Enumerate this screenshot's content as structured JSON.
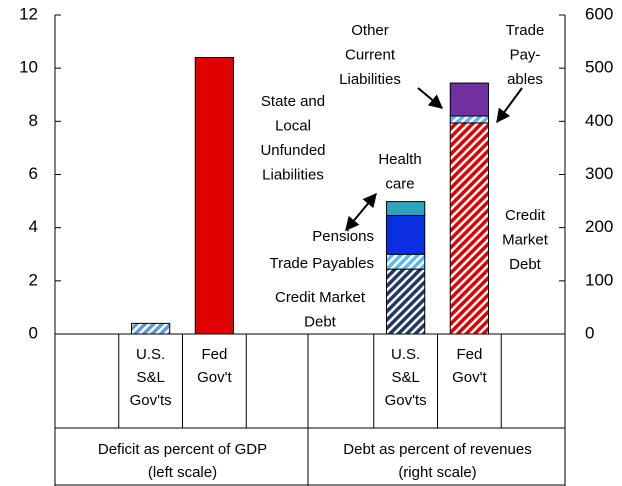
{
  "chart_data": {
    "type": "stacked-bar",
    "categories": [
      null,
      "U.S. S&L Gov'ts",
      "Fed Gov't",
      null,
      null,
      "U.S. S&L Gov'ts",
      "Fed Gov't",
      null
    ],
    "groups": [
      [
        "Deficit as percent of GDP",
        "(left scale)"
      ],
      [
        "Debt as percent of revenues",
        "(right scale)"
      ]
    ],
    "ylim": [
      0,
      12
    ],
    "yticks": [
      0,
      2,
      4,
      6,
      8,
      10,
      12
    ],
    "y2lim": [
      0,
      600
    ],
    "y2ticks": [
      0,
      100,
      200,
      300,
      400,
      500,
      600
    ],
    "series": [
      {
        "values": [
          null,
          0.4,
          10.4,
          null,
          null,
          null,
          null,
          null
        ],
        "colors": [
          null,
          "#5b9bd5",
          "#e00000",
          null,
          null,
          null,
          null,
          null
        ],
        "hatched": [
          null,
          true,
          false,
          null,
          null,
          null,
          null,
          null
        ]
      },
      {
        "axis": "y2",
        "values": [
          null,
          null,
          null,
          null,
          null,
          122,
          397,
          null
        ],
        "colors": [
          null,
          null,
          null,
          null,
          null,
          "#1f3864",
          "#e00000",
          null
        ],
        "hatched": [
          null,
          null,
          null,
          null,
          null,
          true,
          true,
          null
        ]
      },
      {
        "axis": "y2",
        "values": [
          null,
          null,
          null,
          null,
          null,
          28,
          13,
          null
        ],
        "colors": [
          null,
          null,
          null,
          null,
          null,
          "#5bb8f0",
          "#5bb8f0",
          null
        ],
        "hatched": [
          null,
          null,
          null,
          null,
          null,
          true,
          true,
          null
        ]
      },
      {
        "axis": "y2",
        "values": [
          null,
          null,
          null,
          null,
          null,
          73,
          null,
          null
        ],
        "colors": [
          null,
          null,
          null,
          null,
          null,
          "#0a2fe0",
          null,
          null
        ],
        "hatched": [
          null,
          null,
          null,
          null,
          null,
          false,
          null,
          null
        ]
      },
      {
        "axis": "y2",
        "values": [
          null,
          null,
          null,
          null,
          null,
          26,
          null,
          null
        ],
        "colors": [
          null,
          null,
          null,
          null,
          null,
          "#2aa5c0",
          null,
          null
        ],
        "hatched": [
          null,
          null,
          null,
          null,
          null,
          false,
          null,
          null
        ]
      },
      {
        "axis": "y2",
        "values": [
          null,
          null,
          null,
          null,
          null,
          null,
          62,
          null
        ],
        "colors": [
          null,
          null,
          null,
          null,
          null,
          null,
          "#7030a0",
          null
        ],
        "hatched": [
          null,
          null,
          null,
          null,
          null,
          null,
          false,
          null
        ]
      }
    ],
    "annotations": [
      [
        "Other",
        "Current",
        "Liabilities"
      ],
      [
        "Trade",
        "Pay-",
        "ables"
      ],
      [
        "State and",
        "Local",
        "Unfunded",
        "Liabilities"
      ],
      [
        "Health",
        "care"
      ],
      [
        "Pensions"
      ],
      [
        "Trade Payables"
      ],
      [
        "Credit Market",
        "Debt"
      ],
      [
        "Credit",
        "Market",
        "Debt"
      ]
    ]
  }
}
